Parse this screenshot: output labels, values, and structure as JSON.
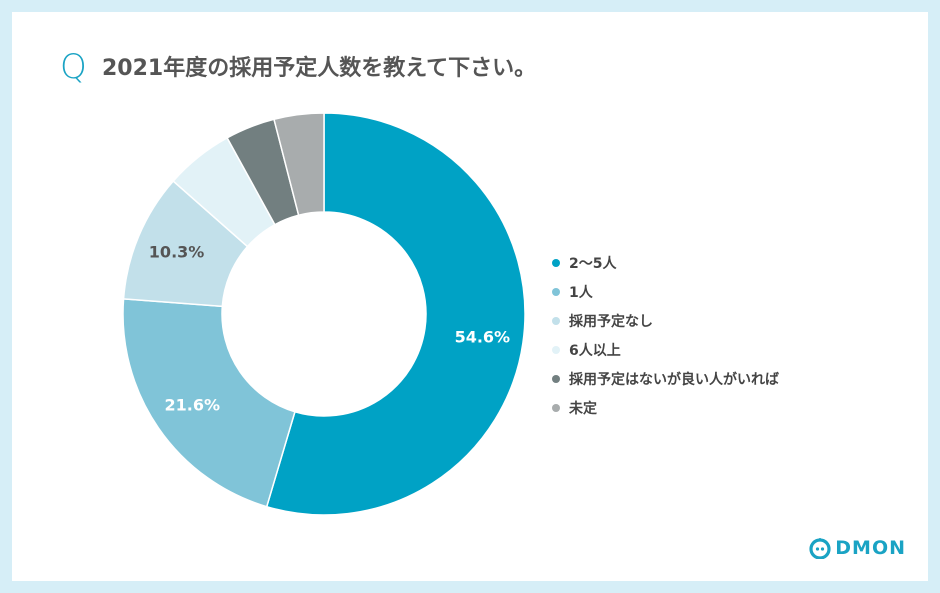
{
  "question": {
    "mark": "Q",
    "text": "2021年度の採用予定人数を教えて下さい。"
  },
  "chart_data": {
    "type": "pie",
    "title": "2021年度の採用予定人数を教えて下さい。",
    "donut": true,
    "legend_position": "right",
    "categories": [
      "2〜5人",
      "1人",
      "採用予定なし",
      "6人以上",
      "採用予定はないが良い人がいれば",
      "未定"
    ],
    "values": [
      54.6,
      21.6,
      10.3,
      5.5,
      4.0,
      4.0
    ],
    "data_labels": [
      "54.6%",
      "21.6%",
      "10.3%",
      "",
      "",
      ""
    ],
    "colors": [
      "#00a2c5",
      "#80c4d8",
      "#c2e0ea",
      "#e2f2f7",
      "#727f80",
      "#a8acad"
    ],
    "label_colors": [
      "#ffffff",
      "#ffffff",
      "#555555",
      "",
      "",
      ""
    ]
  },
  "logo": {
    "text": "DMON",
    "icon": "codmon-logo-icon"
  }
}
